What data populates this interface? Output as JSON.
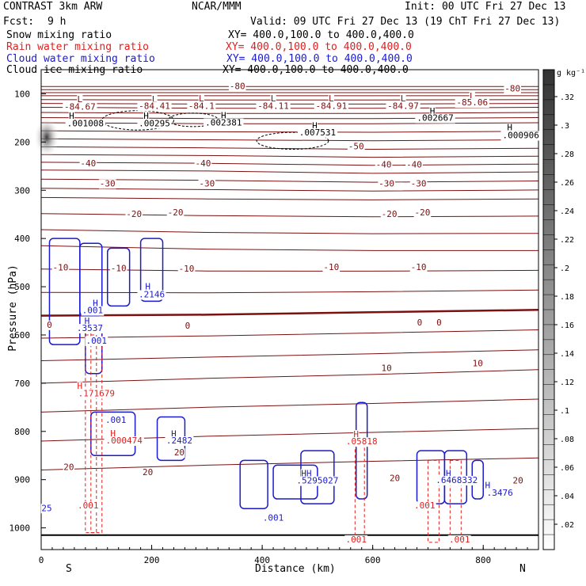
{
  "header": {
    "title_left": "CONTRAST  3km ARW",
    "title_center": "NCAR/MMM",
    "init": "Init: 00 UTC Fri 27 Dec 13",
    "fcst_label": "Fcst:",
    "fcst_value": "9 h",
    "valid": "Valid: 09 UTC Fri 27 Dec 13 (19 ChT Fri 27 Dec 13)"
  },
  "fields": [
    {
      "name": "Snow mixing ratio",
      "xy": "XY= 400.0,100.0 to 400.0,400.0",
      "color": "#000000"
    },
    {
      "name": "Rain water mixing ratio",
      "xy": "XY= 400.0,100.0 to 400.0,400.0",
      "color": "#e02020"
    },
    {
      "name": "Cloud water mixing ratio",
      "xy": "XY= 400.0,100.0 to 400.0,400.0",
      "color": "#1a1ad0"
    },
    {
      "name": "Cloud ice mixing ratio",
      "xy": "XY= 400.0,100.0 to 400.0,400.0",
      "color": "#000000"
    }
  ],
  "colorbar": {
    "unit": "g kg⁻¹",
    "labels": [
      ".32",
      ".3",
      ".28",
      ".26",
      ".24",
      ".22",
      ".2",
      ".18",
      ".16",
      ".14",
      ".12",
      ".1",
      ".08",
      ".06",
      ".04",
      ".02"
    ]
  },
  "chart_data": {
    "type": "cross-section",
    "xlabel": "Distance (km)",
    "ylabel": "Pressure (hPa)",
    "xlim": [
      0,
      900
    ],
    "ylim": [
      1045,
      50
    ],
    "x_ticks": [
      0,
      200,
      400,
      600,
      800
    ],
    "y_ticks": [
      100,
      200,
      300,
      400,
      500,
      600,
      700,
      800,
      900,
      1000
    ],
    "left_end": "S",
    "right_end": "N",
    "temperature_contours": [
      {
        "level": -80,
        "y": [
          85,
          85,
          85,
          85
        ]
      },
      {
        "level": -70,
        "y": [
          104,
          104,
          104,
          104
        ]
      },
      {
        "level": -60,
        "y": [
          128,
          130,
          130,
          128
        ]
      },
      {
        "level": -50,
        "y": [
          160,
          162,
          162,
          160
        ]
      },
      {
        "level": -40,
        "y": [
          210,
          212,
          215,
          213
        ]
      },
      {
        "level": -30,
        "y": [
          258,
          260,
          265,
          262
        ]
      },
      {
        "level": -20,
        "y": [
          315,
          318,
          320,
          318
        ]
      },
      {
        "level": -10,
        "y": [
          415,
          422,
          425,
          425
        ]
      },
      {
        "level": 0,
        "y": [
          560,
          558,
          553,
          548
        ]
      },
      {
        "level": 10,
        "y": [
          700,
          690,
          682,
          672
        ]
      },
      {
        "level": 20,
        "y": [
          880,
          870,
          862,
          855
        ]
      }
    ],
    "labels": [
      {
        "x": 70,
        "p": 117,
        "text": "L",
        "color": "#7a1010"
      },
      {
        "x": 70,
        "p": 133,
        "text": "-84.67",
        "color": "#7a1010"
      },
      {
        "x": 205,
        "p": 117,
        "text": "L",
        "color": "#7a1010"
      },
      {
        "x": 205,
        "p": 131,
        "text": "-84.41",
        "color": "#7a1010"
      },
      {
        "x": 290,
        "p": 116,
        "text": "L",
        "color": "#7a1010"
      },
      {
        "x": 290,
        "p": 131,
        "text": "-84.1",
        "color": "#7a1010"
      },
      {
        "x": 420,
        "p": 116,
        "text": "L",
        "color": "#7a1010"
      },
      {
        "x": 420,
        "p": 131,
        "text": "-84.11",
        "color": "#7a1010"
      },
      {
        "x": 525,
        "p": 116,
        "text": "L",
        "color": "#7a1010"
      },
      {
        "x": 525,
        "p": 131,
        "text": "-84.91",
        "color": "#7a1010"
      },
      {
        "x": 655,
        "p": 116,
        "text": "L",
        "color": "#7a1010"
      },
      {
        "x": 655,
        "p": 131,
        "text": "-84.97",
        "color": "#7a1010"
      },
      {
        "x": 780,
        "p": 111,
        "text": "L",
        "color": "#7a1010"
      },
      {
        "x": 780,
        "p": 124,
        "text": "-85.06",
        "color": "#7a1010"
      },
      {
        "x": 853,
        "p": 95,
        "text": "-80",
        "color": "#7a1010"
      },
      {
        "x": 355,
        "p": 90,
        "text": "-80",
        "color": "#7a1010"
      },
      {
        "x": 55,
        "p": 152,
        "text": "H",
        "color": "#000000"
      },
      {
        "x": 80,
        "p": 167,
        "text": ".001008",
        "color": "#000000"
      },
      {
        "x": 190,
        "p": 152,
        "text": "H",
        "color": "#000000"
      },
      {
        "x": 205,
        "p": 167,
        "text": ".00295",
        "color": "#000000"
      },
      {
        "x": 330,
        "p": 151,
        "text": "H",
        "color": "#000000"
      },
      {
        "x": 330,
        "p": 166,
        "text": ".002381",
        "color": "#000000"
      },
      {
        "x": 495,
        "p": 172,
        "text": "H",
        "color": "#000000"
      },
      {
        "x": 500,
        "p": 186,
        "text": ".007531",
        "color": "#000000"
      },
      {
        "x": 708,
        "p": 142,
        "text": "H",
        "color": "#000000"
      },
      {
        "x": 713,
        "p": 156,
        "text": ".002667",
        "color": "#000000"
      },
      {
        "x": 848,
        "p": 176,
        "text": "H",
        "color": "#000000"
      },
      {
        "x": 868,
        "p": 192,
        "text": ".000906",
        "color": "#000000"
      },
      {
        "x": 570,
        "p": 215,
        "text": "-50",
        "color": "#7a1010"
      },
      {
        "x": 85,
        "p": 250,
        "text": "-40",
        "color": "#7a1010"
      },
      {
        "x": 293,
        "p": 250,
        "text": "-40",
        "color": "#7a1010"
      },
      {
        "x": 620,
        "p": 253,
        "text": "-40",
        "color": "#7a1010"
      },
      {
        "x": 675,
        "p": 253,
        "text": "-40",
        "color": "#7a1010"
      },
      {
        "x": 120,
        "p": 292,
        "text": "-30",
        "color": "#7a1010"
      },
      {
        "x": 300,
        "p": 292,
        "text": "-30",
        "color": "#7a1010"
      },
      {
        "x": 625,
        "p": 292,
        "text": "-30",
        "color": "#7a1010"
      },
      {
        "x": 683,
        "p": 292,
        "text": "-30",
        "color": "#7a1010"
      },
      {
        "x": 168,
        "p": 355,
        "text": "-20",
        "color": "#7a1010"
      },
      {
        "x": 243,
        "p": 352,
        "text": "-20",
        "color": "#7a1010"
      },
      {
        "x": 630,
        "p": 355,
        "text": "-20",
        "color": "#7a1010"
      },
      {
        "x": 690,
        "p": 352,
        "text": "-20",
        "color": "#7a1010"
      },
      {
        "x": 35,
        "p": 466,
        "text": "-10",
        "color": "#7a1010"
      },
      {
        "x": 140,
        "p": 468,
        "text": "-10",
        "color": "#7a1010"
      },
      {
        "x": 263,
        "p": 469,
        "text": "-10",
        "color": "#7a1010"
      },
      {
        "x": 525,
        "p": 465,
        "text": "-10",
        "color": "#7a1010"
      },
      {
        "x": 683,
        "p": 465,
        "text": "-10",
        "color": "#7a1010"
      },
      {
        "x": 15,
        "p": 585,
        "text": "0",
        "color": "#7a1010"
      },
      {
        "x": 265,
        "p": 587,
        "text": "0",
        "color": "#7a1010"
      },
      {
        "x": 685,
        "p": 580,
        "text": "0",
        "color": "#7a1010"
      },
      {
        "x": 720,
        "p": 580,
        "text": "0",
        "color": "#7a1010"
      },
      {
        "x": 625,
        "p": 675,
        "text": "10",
        "color": "#7a1010"
      },
      {
        "x": 790,
        "p": 665,
        "text": "10",
        "color": "#7a1010"
      },
      {
        "x": 50,
        "p": 880,
        "text": "20",
        "color": "#7a1010"
      },
      {
        "x": 193,
        "p": 891,
        "text": "20",
        "color": "#7a1010"
      },
      {
        "x": 863,
        "p": 908,
        "text": "20",
        "color": "#7a1010"
      },
      {
        "x": 640,
        "p": 903,
        "text": "20",
        "color": "#7a1010"
      },
      {
        "x": 250,
        "p": 850,
        "text": "20",
        "color": "#7a1010"
      },
      {
        "x": 98,
        "p": 540,
        "text": "H",
        "color": "#1a1ad0"
      },
      {
        "x": 93,
        "p": 555,
        "text": ".001",
        "color": "#1a1ad0"
      },
      {
        "x": 83,
        "p": 577,
        "text": "H",
        "color": "#1a1ad0"
      },
      {
        "x": 88,
        "p": 592,
        "text": ".3537",
        "color": "#1a1ad0"
      },
      {
        "x": 100,
        "p": 618,
        "text": ".001",
        "color": "#1a1ad0"
      },
      {
        "x": 193,
        "p": 506,
        "text": "H",
        "color": "#1a1ad0"
      },
      {
        "x": 200,
        "p": 522,
        "text": ".2146",
        "color": "#1a1ad0"
      },
      {
        "x": 70,
        "p": 712,
        "text": "H",
        "color": "#e02020"
      },
      {
        "x": 100,
        "p": 727,
        "text": ".171679",
        "color": "#e02020"
      },
      {
        "x": 135,
        "p": 782,
        "text": ".001",
        "color": "#1a1ad0"
      },
      {
        "x": 130,
        "p": 810,
        "text": "H",
        "color": "#e02020"
      },
      {
        "x": 150,
        "p": 825,
        "text": ".000474",
        "color": "#e02020"
      },
      {
        "x": 240,
        "p": 811,
        "text": "H",
        "color": "#1a1ad0"
      },
      {
        "x": 250,
        "p": 825,
        "text": ".2482",
        "color": "#1a1ad0"
      },
      {
        "x": 10,
        "p": 965,
        "text": "25",
        "color": "#1a1ad0"
      },
      {
        "x": 85,
        "p": 960,
        "text": ".001",
        "color": "#e02020"
      },
      {
        "x": 420,
        "p": 985,
        "text": ".001",
        "color": "#1a1ad0"
      },
      {
        "x": 480,
        "p": 893,
        "text": "HH",
        "color": "#1a1ad0"
      },
      {
        "x": 500,
        "p": 908,
        "text": ".5295027",
        "color": "#1a1ad0"
      },
      {
        "x": 570,
        "p": 812,
        "text": "H",
        "color": "#e02020"
      },
      {
        "x": 580,
        "p": 827,
        "text": ".05818",
        "color": "#e02020"
      },
      {
        "x": 570,
        "p": 1030,
        "text": ".001",
        "color": "#e02020"
      },
      {
        "x": 694,
        "p": 960,
        "text": ".001",
        "color": "#e02020"
      },
      {
        "x": 737,
        "p": 893,
        "text": "H",
        "color": "#1a1ad0"
      },
      {
        "x": 752,
        "p": 907,
        "text": ".6468332",
        "color": "#1a1ad0"
      },
      {
        "x": 808,
        "p": 918,
        "text": "H",
        "color": "#1a1ad0"
      },
      {
        "x": 830,
        "p": 933,
        "text": ".3476",
        "color": "#1a1ad0"
      },
      {
        "x": 757,
        "p": 1030,
        "text": ".001",
        "color": "#e02020"
      }
    ]
  }
}
